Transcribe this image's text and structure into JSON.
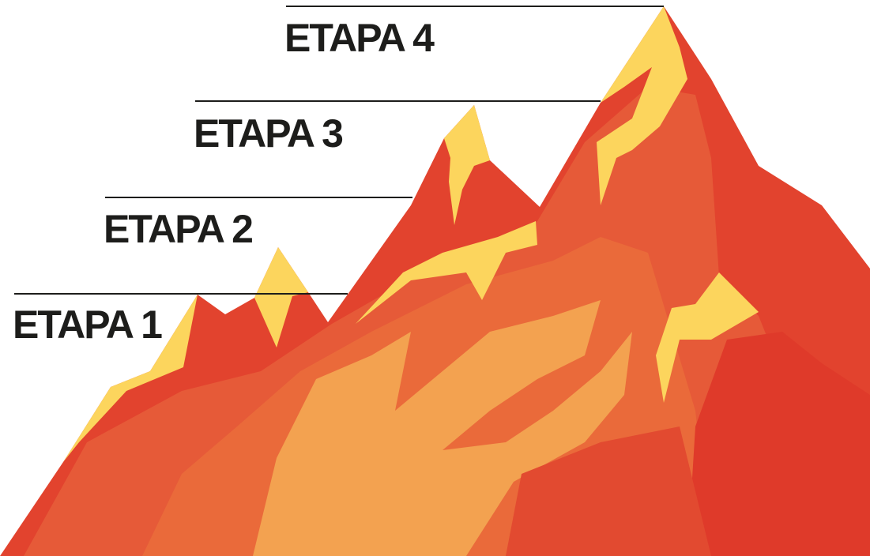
{
  "stages": [
    "ETAPA 1",
    "ETAPA 2",
    "ETAPA 3",
    "ETAPA 4"
  ]
}
